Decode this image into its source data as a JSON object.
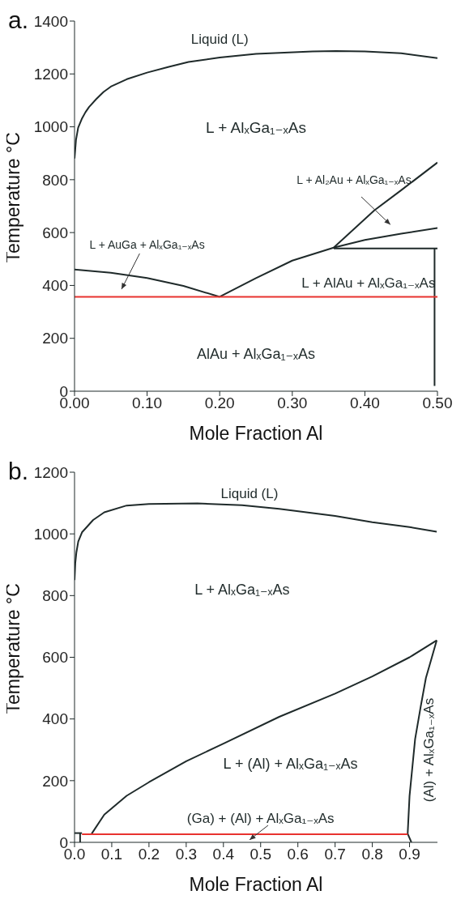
{
  "chart_data": [
    {
      "type": "line",
      "title": "a.",
      "xlabel": "Mole Fraction Al",
      "ylabel": "Temperature °C",
      "xlim": [
        0,
        0.5
      ],
      "ylim": [
        0,
        1400
      ],
      "xticks": [
        {
          "value": 0,
          "label": "0.00"
        },
        {
          "value": 0.1,
          "label": "0.10"
        },
        {
          "value": 0.2,
          "label": "0.20"
        },
        {
          "value": 0.3,
          "label": "0.30"
        },
        {
          "value": 0.4,
          "label": "0.40"
        },
        {
          "value": 0.5,
          "label": "0.50"
        }
      ],
      "yticks": [
        0,
        200,
        400,
        600,
        800,
        1000,
        1200,
        1400
      ],
      "marker": "none",
      "grid": false,
      "annotations": [
        "Liquid (L)",
        "L + AlₓGa₁₋ₓAs",
        "L + Al₂Au + AlₓGa₁₋ₓAs",
        "L + AuGa + AlₓGa₁₋ₓAs",
        "L + AlAu + AlₓGa₁₋ₓAs",
        "AlAu + AlₓGa₁₋ₓAs"
      ],
      "series": [
        {
          "color": "#1f2a2a",
          "x": [
            0,
            0.002,
            0.005,
            0.01,
            0.015,
            0.02,
            0.03,
            0.04,
            0.05,
            0.072,
            0.1,
            0.13,
            0.157,
            0.2,
            0.25,
            0.328,
            0.36,
            0.4,
            0.45,
            0.5
          ],
          "values": [
            880,
            950,
            997,
            1030,
            1055,
            1075,
            1105,
            1132,
            1152,
            1180,
            1205,
            1227,
            1245,
            1262,
            1276,
            1285,
            1287,
            1285,
            1278,
            1260
          ]
        },
        {
          "color": "#1f2a2a",
          "x": [
            0,
            0.05,
            0.1,
            0.15,
            0.2
          ],
          "values": [
            460,
            448,
            428,
            398,
            357
          ]
        },
        {
          "color": "#1f2a2a",
          "x": [
            0.2,
            0.25,
            0.3,
            0.357,
            0.413,
            0.45,
            0.5
          ],
          "values": [
            357,
            428,
            494,
            543,
            684,
            760,
            865
          ]
        },
        {
          "color": "#1f2a2a",
          "x": [
            0.357,
            0.4,
            0.45,
            0.5
          ],
          "values": [
            543,
            572,
            596,
            617
          ]
        },
        {
          "color": "#1f2a2a",
          "x": [
            0.357,
            0.5
          ],
          "values": [
            540,
            540
          ]
        },
        {
          "color": "#1f2a2a",
          "x": [
            0.496,
            0.496
          ],
          "values": [
            540,
            20
          ]
        },
        {
          "color": "#e8332f",
          "x": [
            0,
            0.5
          ],
          "values": [
            357,
            357
          ]
        }
      ]
    },
    {
      "type": "line",
      "title": "b.",
      "xlabel": "Mole Fraction Al",
      "ylabel": "Temperature °C",
      "xlim": [
        0,
        0.975
      ],
      "ylim": [
        0,
        1200
      ],
      "xticks": [
        {
          "value": 0,
          "label": "0.0"
        },
        0.1,
        0.2,
        0.3,
        0.4,
        0.5,
        0.6,
        0.7,
        0.8,
        0.9
      ],
      "yticks": [
        0,
        200,
        400,
        600,
        800,
        1000,
        1200
      ],
      "marker": "none",
      "grid": false,
      "annotations": [
        "Liquid (L)",
        "L + AlₓGa₁₋ₓAs",
        "L + (Al) + AlₓGa₁₋ₓAs",
        "(Ga) + (Al) + AlₓGa₁₋ₓAs",
        "(Al) + AlₓGa₁₋ₓAs"
      ],
      "series": [
        {
          "color": "#1f2a2a",
          "x": [
            0,
            0.002,
            0.005,
            0.01,
            0.02,
            0.05,
            0.08,
            0.14,
            0.2,
            0.33,
            0.45,
            0.55,
            0.7,
            0.8,
            0.9,
            0.973
          ],
          "values": [
            850,
            905,
            940,
            975,
            1005,
            1045,
            1070,
            1092,
            1097,
            1099,
            1093,
            1081,
            1058,
            1038,
            1022,
            1007
          ]
        },
        {
          "color": "#1f2a2a",
          "x": [
            0.046,
            0.08,
            0.14,
            0.2,
            0.3,
            0.4,
            0.55,
            0.7,
            0.8,
            0.9,
            0.973
          ],
          "values": [
            28,
            90,
            151,
            195,
            263,
            320,
            407,
            482,
            538,
            600,
            655
          ]
        },
        {
          "color": "#1f2a2a",
          "x": [
            0.905,
            0.895,
            0.9,
            0.915,
            0.93,
            0.944,
            0.96,
            0.973
          ],
          "values": [
            0,
            28,
            150,
            335,
            440,
            533,
            600,
            655
          ]
        },
        {
          "color": "#1f2a2a",
          "x": [
            0,
            0.02
          ],
          "values": [
            30,
            30
          ]
        },
        {
          "color": "#1f2a2a",
          "x": [
            0.015,
            0.015
          ],
          "values": [
            0,
            30
          ]
        },
        {
          "color": "#e8332f",
          "x": [
            0.02,
            0.895
          ],
          "values": [
            26,
            26
          ]
        }
      ]
    }
  ]
}
